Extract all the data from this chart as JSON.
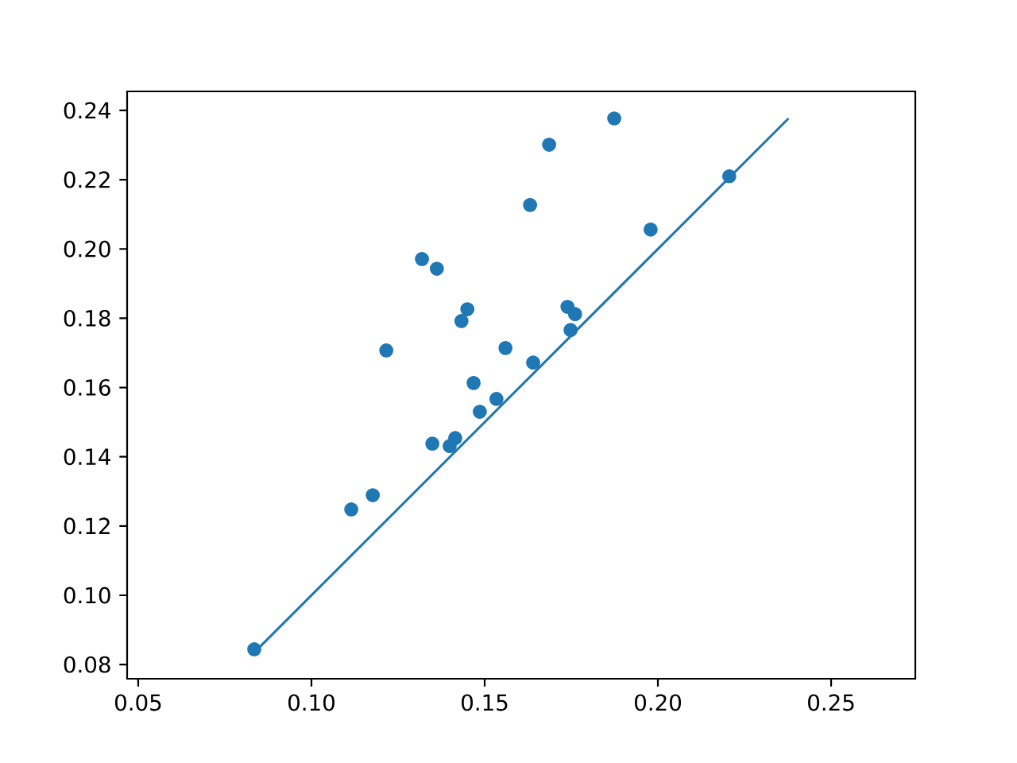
{
  "chart_data": {
    "type": "scatter",
    "grid": false,
    "xlim": [
      0.0468,
      0.2743
    ],
    "ylim": [
      0.0759,
      0.2455
    ],
    "xticks": [
      {
        "value": 0.05,
        "label": "0.05"
      },
      {
        "value": 0.1,
        "label": "0.10"
      },
      {
        "value": 0.15,
        "label": "0.15"
      },
      {
        "value": 0.2,
        "label": "0.20"
      },
      {
        "value": 0.25,
        "label": "0.25"
      }
    ],
    "yticks": [
      {
        "value": 0.08,
        "label": "0.08"
      },
      {
        "value": 0.1,
        "label": "0.10"
      },
      {
        "value": 0.12,
        "label": "0.12"
      },
      {
        "value": 0.14,
        "label": "0.14"
      },
      {
        "value": 0.16,
        "label": "0.16"
      },
      {
        "value": 0.18,
        "label": "0.18"
      },
      {
        "value": 0.2,
        "label": "0.20"
      },
      {
        "value": 0.22,
        "label": "0.22"
      },
      {
        "value": 0.24,
        "label": "0.24"
      }
    ],
    "series": [
      {
        "color": "#1f77b4",
        "x": [
          0.0835,
          0.1115,
          0.1177,
          0.1216,
          0.1319,
          0.1349,
          0.1362,
          0.1399,
          0.1415,
          0.1433,
          0.145,
          0.1468,
          0.1486,
          0.1534,
          0.156,
          0.1631,
          0.164,
          0.1686,
          0.1739,
          0.1748,
          0.1761,
          0.1874,
          0.1979,
          0.2206
        ],
        "values": [
          0.0844,
          0.1248,
          0.1289,
          0.1707,
          0.1971,
          0.1438,
          0.1943,
          0.1431,
          0.1454,
          0.1792,
          0.1826,
          0.1613,
          0.153,
          0.1567,
          0.1714,
          0.2127,
          0.1672,
          0.2301,
          0.1833,
          0.1766,
          0.1812,
          0.2377,
          0.2056,
          0.221
        ]
      },
      {
        "type": "line",
        "color": "#1f77b4",
        "line_style": "solid",
        "x": [
          0.0835,
          0.2377
        ],
        "values": [
          0.0835,
          0.2377
        ]
      }
    ]
  }
}
